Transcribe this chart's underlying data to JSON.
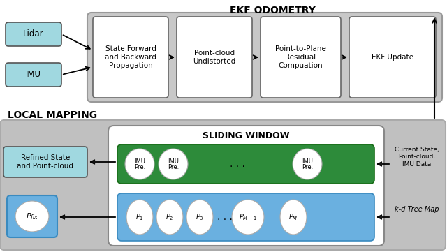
{
  "white": "#ffffff",
  "cyan_box": "#a0d8e0",
  "green_box": "#2d8b3a",
  "blue_box": "#6ab0e0",
  "gray_bg": "#c0c0c0",
  "gray_ekf": "#c8c8c8",
  "ekf_title": "EKF ODOMETRY",
  "local_title": "LOCAL MAPPING",
  "sliding_title": "SLIDING WINDOW",
  "lidar_label": "Lidar",
  "imu_label": "IMU",
  "box1_label": "State Forward\nand Backward\nPropagation",
  "box2_label": "Point-cloud\nUndistorted",
  "box3_label": "Point-to-Plane\nResidual\nCompuation",
  "box4_label": "EKF Update",
  "refined_label": "Refined State\nand Point-cloud",
  "current_state_label": "Current State,\nPoint-cloud,\nIMU Data",
  "kd_tree_label": "k-d Tree Map",
  "imu_pre_line1": "IMU",
  "imu_pre_line2": "Pre."
}
